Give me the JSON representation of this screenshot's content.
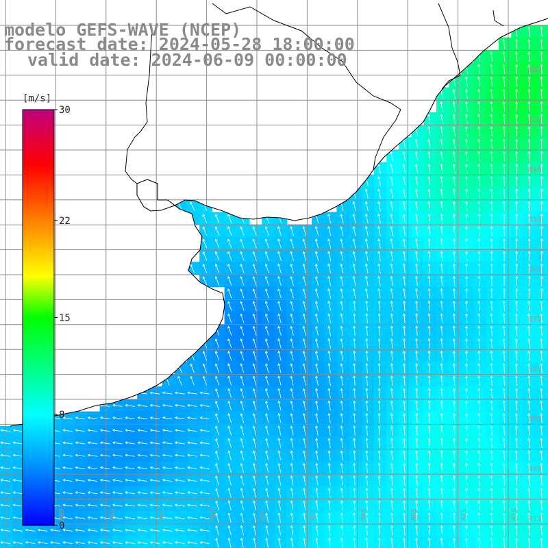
{
  "header": {
    "model": "modelo GEFS-WAVE (NCEP)",
    "forecast": "forecast date: 2024-05-28 18:00:00",
    "valid": "valid date: 2024-06-09 00:00:00"
  },
  "colorbar": {
    "unit": "[m/s]",
    "ticks": [
      "30",
      "22",
      "15",
      "8",
      "0"
    ],
    "tick_values": [
      30,
      22,
      15,
      8,
      0
    ],
    "gradient_stops": [
      {
        "value": 0,
        "color": "#0000ff"
      },
      {
        "value": 4,
        "color": "#0088ff"
      },
      {
        "value": 8,
        "color": "#00ffff"
      },
      {
        "value": 15,
        "color": "#00ff00"
      },
      {
        "value": 18,
        "color": "#ffff00"
      },
      {
        "value": 22,
        "color": "#ff8000"
      },
      {
        "value": 26,
        "color": "#ff0000"
      },
      {
        "value": 30,
        "color": "#c0007f"
      }
    ]
  },
  "map": {
    "latitude_labels": [
      "32S",
      "33S",
      "34S",
      "35S",
      "36S",
      "37S",
      "38S",
      "39S",
      "40S",
      "41S"
    ],
    "longitude_labels": [
      "60W",
      "59W",
      "58W",
      "57W",
      "56W",
      "55W",
      "54W",
      "53W",
      "52W",
      "51W"
    ],
    "grid_color": "#8c8c8c",
    "coast_color": "#000000",
    "arrow_color": "#ffffff",
    "label_color": "#9a9a9a"
  }
}
